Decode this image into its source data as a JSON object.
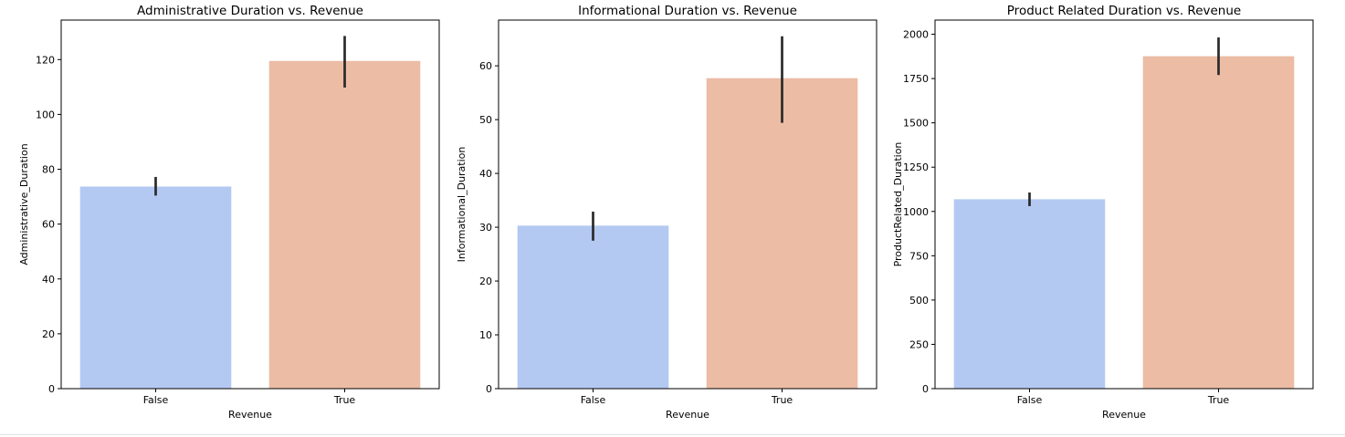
{
  "colors": {
    "false_bar": "#b4c9f2",
    "true_bar": "#ecbca5",
    "errorbar": "#2a2a2a",
    "axes": "#000000"
  },
  "chart_data": [
    {
      "type": "bar",
      "title": "Administrative Duration vs. Revenue",
      "xlabel": "Revenue",
      "ylabel": "Administrative_Duration",
      "categories": [
        "False",
        "True"
      ],
      "values": [
        73.7,
        119.5
      ],
      "error_low": [
        70.4,
        109.8
      ],
      "error_high": [
        77.2,
        128.6
      ],
      "ylim": [
        0,
        134.4
      ],
      "yticks": [
        0,
        20,
        40,
        60,
        80,
        100,
        120
      ],
      "ytick_labels": [
        "0",
        "20",
        "40",
        "60",
        "80",
        "100",
        "120"
      ]
    },
    {
      "type": "bar",
      "title": "Informational Duration vs. Revenue",
      "xlabel": "Revenue",
      "ylabel": "Informational_Duration",
      "categories": [
        "False",
        "True"
      ],
      "values": [
        30.3,
        57.7
      ],
      "error_low": [
        27.5,
        49.4
      ],
      "error_high": [
        32.9,
        65.5
      ],
      "ylim": [
        0,
        68.5
      ],
      "yticks": [
        0,
        10,
        20,
        30,
        40,
        50,
        60
      ],
      "ytick_labels": [
        "0",
        "10",
        "20",
        "30",
        "40",
        "50",
        "60"
      ]
    },
    {
      "type": "bar",
      "title": "Product Related Duration vs. Revenue",
      "xlabel": "Revenue",
      "ylabel": "ProductRelated_Duration",
      "categories": [
        "False",
        "True"
      ],
      "values": [
        1069,
        1876
      ],
      "error_low": [
        1030,
        1770
      ],
      "error_high": [
        1107,
        1982
      ],
      "ylim": [
        0,
        2080
      ],
      "yticks": [
        0,
        250,
        500,
        750,
        1000,
        1250,
        1500,
        1750,
        2000
      ],
      "ytick_labels": [
        "0",
        "250",
        "500",
        "750",
        "1000",
        "1250",
        "1500",
        "1750",
        "2000"
      ]
    }
  ]
}
